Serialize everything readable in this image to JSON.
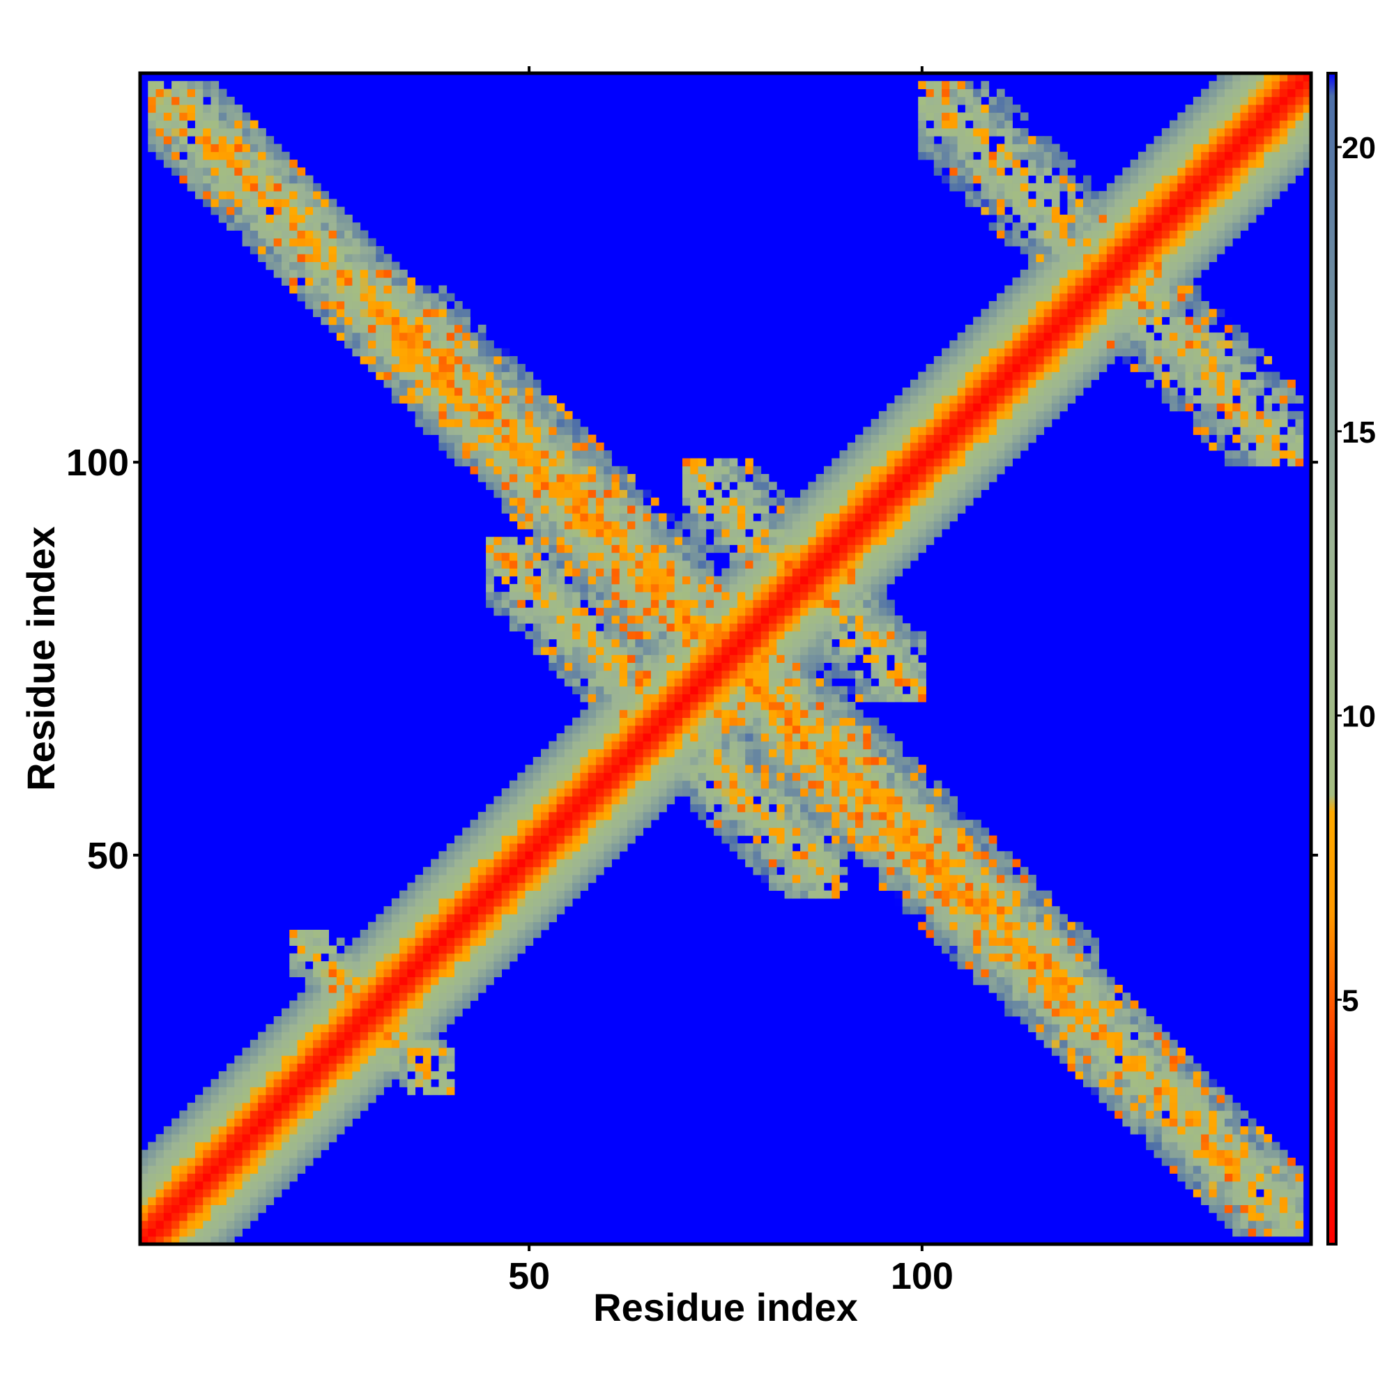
{
  "chart_data": {
    "type": "heatmap",
    "title": "",
    "xlabel": "Residue index",
    "ylabel": "Residue index",
    "xlim": [
      1,
      149
    ],
    "ylim": [
      1,
      149
    ],
    "x_ticks": [
      {
        "value": 50,
        "label": "50"
      },
      {
        "value": 100,
        "label": "100"
      }
    ],
    "y_ticks": [
      {
        "value": 50,
        "label": "50"
      },
      {
        "value": 100,
        "label": "100"
      }
    ],
    "colorbar": {
      "range": [
        0.7,
        21.3
      ],
      "ticks": [
        {
          "value": 5,
          "label": "5"
        },
        {
          "value": 10,
          "label": "10"
        },
        {
          "value": 15,
          "label": "15"
        },
        {
          "value": 20,
          "label": "20"
        }
      ],
      "color_stops": [
        {
          "value": 0.7,
          "color": "#ff0000"
        },
        {
          "value": 4.0,
          "color": "#ff3300"
        },
        {
          "value": 6.5,
          "color": "#ff9900"
        },
        {
          "value": 8.3,
          "color": "#ffaa00"
        },
        {
          "value": 8.6,
          "color": "#a4bd82"
        },
        {
          "value": 13.0,
          "color": "#9cb494"
        },
        {
          "value": 20.9,
          "color": "#4d6fa8"
        },
        {
          "value": 21.3,
          "color": "#0000ff"
        }
      ],
      "background_color": "#0000ff"
    },
    "description_of_structure": {
      "diagonal": "distance ~0 on main diagonal, smooth band widening to ~8 residues",
      "contact_regions": [
        {
          "x_range": [
            1,
            50
          ],
          "y_range": [
            100,
            149
          ],
          "kind": "antidiagonal-band"
        },
        {
          "x_range": [
            100,
            149
          ],
          "y_range": [
            1,
            50
          ],
          "kind": "antidiagonal-band"
        },
        {
          "x_range": [
            50,
            149
          ],
          "y_range": [
            100,
            149
          ],
          "kind": "antidiagonal-band"
        },
        {
          "x_range": [
            1,
            50
          ],
          "y_range": [
            50,
            100
          ],
          "kind": "antidiagonal-band"
        },
        {
          "x_range": [
            90,
            149
          ],
          "y_range": [
            1,
            50
          ],
          "kind": "antidiagonal-band"
        },
        {
          "x_range": [
            25,
            100
          ],
          "y_range": [
            25,
            100
          ],
          "kind": "antidiagonal-band"
        }
      ]
    }
  }
}
